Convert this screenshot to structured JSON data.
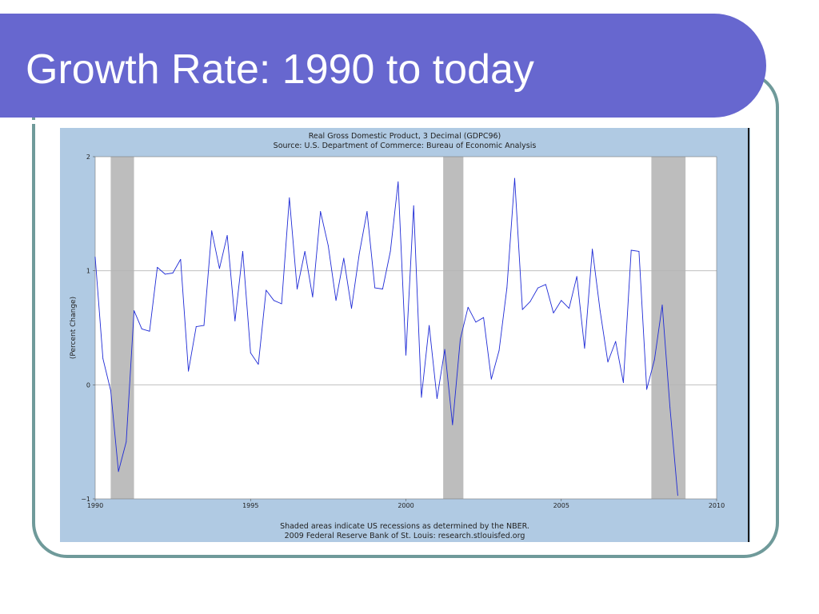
{
  "slide": {
    "title": "Growth Rate: 1990 to today",
    "colors": {
      "banner": "#6767cf",
      "frame": "#6f9a9a",
      "chart_panel": "#b0cae3"
    }
  },
  "chart_data": {
    "type": "line",
    "title": "Real Gross Domestic Product, 3 Decimal (GDPC96)",
    "subtitle": "Source: U.S. Department of Commerce: Bureau of Economic Analysis",
    "ylabel": "(Percent Change)",
    "xlabel": "",
    "xlim": [
      1990,
      2010
    ],
    "ylim": [
      -1,
      2
    ],
    "x_ticks": [
      1990,
      1995,
      2000,
      2005,
      2010
    ],
    "y_ticks": [
      -1,
      0,
      1,
      2
    ],
    "grid": "horizontal",
    "footnote_1": "Shaded areas indicate US recessions as determined by the NBER.",
    "footnote_2": "2009 Federal Reserve Bank of St. Louis: research.stlouisfed.org",
    "line_color": "#1f2bd6",
    "recession_color": "#bdbdbd",
    "recessions": [
      [
        1990.5,
        1991.25
      ],
      [
        2001.2,
        2001.85
      ],
      [
        2007.9,
        2009.0
      ]
    ],
    "series": [
      {
        "x": [
          1990.0,
          1990.25,
          1990.5,
          1990.75,
          1991.0,
          1991.25,
          1991.5,
          1991.75,
          1992.0,
          1992.25,
          1992.5,
          1992.75,
          1993.0,
          1993.25,
          1993.5,
          1993.75,
          1994.0,
          1994.25,
          1994.5,
          1994.75,
          1995.0,
          1995.25,
          1995.5,
          1995.75,
          1996.0,
          1996.25,
          1996.5,
          1996.75,
          1997.0,
          1997.25,
          1997.5,
          1997.75,
          1998.0,
          1998.25,
          1998.5,
          1998.75,
          1999.0,
          1999.25,
          1999.5,
          1999.75,
          2000.0,
          2000.25,
          2000.5,
          2000.75,
          2001.0,
          2001.25,
          2001.5,
          2001.75,
          2002.0,
          2002.25,
          2002.5,
          2002.75,
          2003.0,
          2003.25,
          2003.5,
          2003.75,
          2004.0,
          2004.25,
          2004.5,
          2004.75,
          2005.0,
          2005.25,
          2005.5,
          2005.75,
          2006.0,
          2006.25,
          2006.5,
          2006.75,
          2007.0,
          2007.25,
          2007.5,
          2007.75,
          2008.0,
          2008.25,
          2008.5,
          2008.75
        ],
        "values": [
          1.12,
          0.23,
          -0.05,
          -0.76,
          -0.5,
          0.65,
          0.49,
          0.47,
          1.03,
          0.97,
          0.98,
          1.1,
          0.12,
          0.51,
          0.52,
          1.35,
          1.02,
          1.31,
          0.56,
          1.17,
          0.28,
          0.18,
          0.83,
          0.74,
          0.71,
          1.64,
          0.84,
          1.17,
          0.77,
          1.52,
          1.22,
          0.74,
          1.11,
          0.67,
          1.15,
          1.52,
          0.85,
          0.84,
          1.17,
          1.78,
          0.26,
          1.57,
          -0.11,
          0.52,
          -0.12,
          0.31,
          -0.35,
          0.4,
          0.68,
          0.55,
          0.59,
          0.05,
          0.3,
          0.85,
          1.81,
          0.66,
          0.73,
          0.85,
          0.88,
          0.63,
          0.74,
          0.67,
          0.95,
          0.32,
          1.19,
          0.65,
          0.2,
          0.38,
          0.02,
          1.18,
          1.17,
          -0.04,
          0.22,
          0.7,
          -0.2,
          -0.97
        ]
      }
    ]
  }
}
